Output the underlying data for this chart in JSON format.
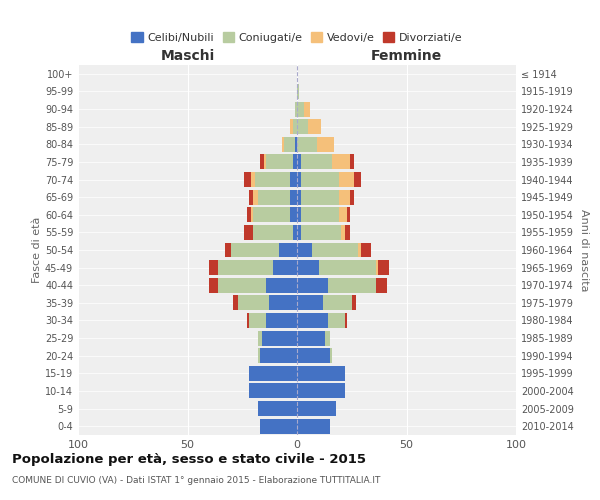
{
  "age_groups": [
    "0-4",
    "5-9",
    "10-14",
    "15-19",
    "20-24",
    "25-29",
    "30-34",
    "35-39",
    "40-44",
    "45-49",
    "50-54",
    "55-59",
    "60-64",
    "65-69",
    "70-74",
    "75-79",
    "80-84",
    "85-89",
    "90-94",
    "95-99",
    "100+"
  ],
  "birth_years": [
    "2010-2014",
    "2005-2009",
    "2000-2004",
    "1995-1999",
    "1990-1994",
    "1985-1989",
    "1980-1984",
    "1975-1979",
    "1970-1974",
    "1965-1969",
    "1960-1964",
    "1955-1959",
    "1950-1954",
    "1945-1949",
    "1940-1944",
    "1935-1939",
    "1930-1934",
    "1925-1929",
    "1920-1924",
    "1915-1919",
    "≤ 1914"
  ],
  "maschi": {
    "celibi": [
      17,
      18,
      22,
      22,
      17,
      16,
      14,
      13,
      14,
      11,
      8,
      2,
      3,
      3,
      3,
      2,
      1,
      0,
      0,
      0,
      0
    ],
    "coniugati": [
      0,
      0,
      0,
      0,
      1,
      2,
      8,
      14,
      22,
      25,
      22,
      18,
      17,
      15,
      16,
      12,
      5,
      2,
      1,
      0,
      0
    ],
    "vedovi": [
      0,
      0,
      0,
      0,
      0,
      0,
      0,
      0,
      0,
      0,
      0,
      0,
      1,
      2,
      2,
      1,
      1,
      1,
      0,
      0,
      0
    ],
    "divorziati": [
      0,
      0,
      0,
      0,
      0,
      0,
      1,
      2,
      4,
      4,
      3,
      4,
      2,
      2,
      3,
      2,
      0,
      0,
      0,
      0,
      0
    ]
  },
  "femmine": {
    "nubili": [
      15,
      18,
      22,
      22,
      15,
      13,
      14,
      12,
      14,
      10,
      7,
      2,
      2,
      2,
      2,
      2,
      0,
      0,
      0,
      0,
      0
    ],
    "coniugate": [
      0,
      0,
      0,
      0,
      1,
      2,
      8,
      13,
      22,
      26,
      21,
      18,
      17,
      17,
      17,
      14,
      9,
      5,
      3,
      1,
      0
    ],
    "vedove": [
      0,
      0,
      0,
      0,
      0,
      0,
      0,
      0,
      0,
      1,
      1,
      2,
      4,
      5,
      7,
      8,
      8,
      6,
      3,
      0,
      0
    ],
    "divorziate": [
      0,
      0,
      0,
      0,
      0,
      0,
      1,
      2,
      5,
      5,
      5,
      2,
      1,
      2,
      3,
      2,
      0,
      0,
      0,
      0,
      0
    ]
  },
  "colors": {
    "celibi_nubili": "#4472c4",
    "coniugati": "#b8cca0",
    "vedovi": "#f5c07a",
    "divorziati": "#c0392b"
  },
  "xlim": 100,
  "title": "Popolazione per età, sesso e stato civile - 2015",
  "subtitle": "COMUNE DI CUVIO (VA) - Dati ISTAT 1° gennaio 2015 - Elaborazione TUTTITALIA.IT",
  "xlabel_left": "Maschi",
  "xlabel_right": "Femmine",
  "ylabel_left": "Fasce di età",
  "ylabel_right": "Anni di nascita",
  "legend_labels": [
    "Celibi/Nubili",
    "Coniugati/e",
    "Vedovi/e",
    "Divorziati/e"
  ],
  "bg_color": "#efefef"
}
